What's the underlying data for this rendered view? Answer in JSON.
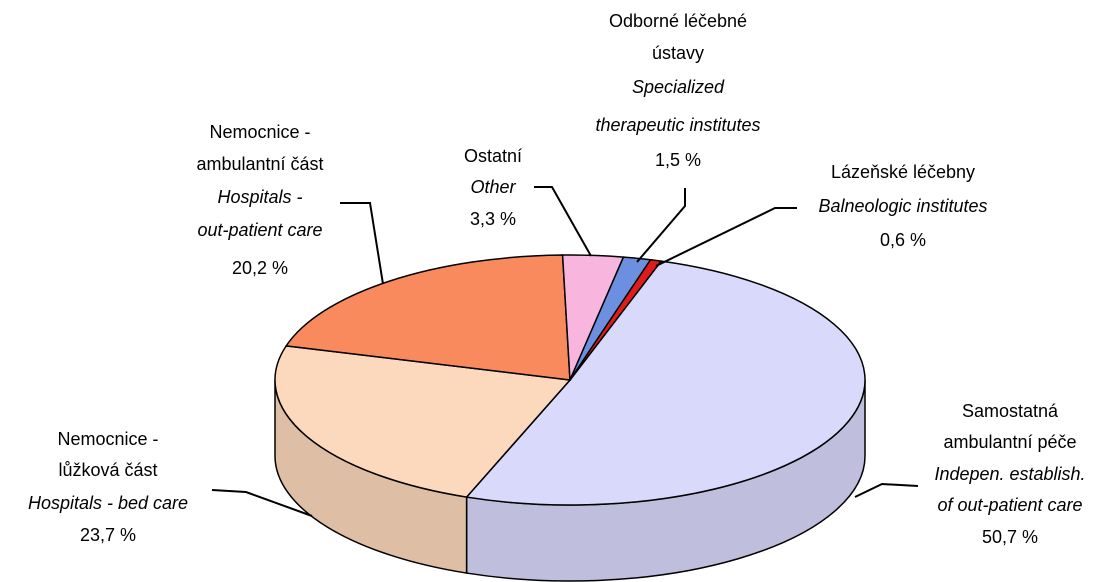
{
  "chart_data": {
    "type": "pie",
    "categories": [
      [
        "Samostatná",
        "ambulantní péče"
      ],
      [
        "Nemocnice -",
        "lůžková část"
      ],
      [
        "Nemocnice -",
        "ambulantní část"
      ],
      [
        "Ostatní"
      ],
      [
        "Odborné léčebné",
        "ústavy"
      ],
      [
        "Lázeňské léčebny"
      ]
    ],
    "categories_en": [
      [
        "Indepen. establish.",
        "of out-patient care"
      ],
      [
        "Hospitals - bed care"
      ],
      [
        "Hospitals -",
        "out-patient care"
      ],
      [
        "Other"
      ],
      [
        "Specialized",
        "therapeutic institutes"
      ],
      [
        "Balneologic institutes"
      ]
    ],
    "values": [
      50.7,
      23.7,
      20.2,
      3.3,
      1.5,
      0.6
    ],
    "value_labels": [
      "50,7 %",
      "23,7 %",
      "20,2 %",
      "3,3 %",
      "1,5 %",
      "0,6 %"
    ],
    "colors": [
      "#d9d9fb",
      "#fcd8bc",
      "#f98a5e",
      "#f8b6de",
      "#6c8fe0",
      "#e01b1b"
    ]
  }
}
